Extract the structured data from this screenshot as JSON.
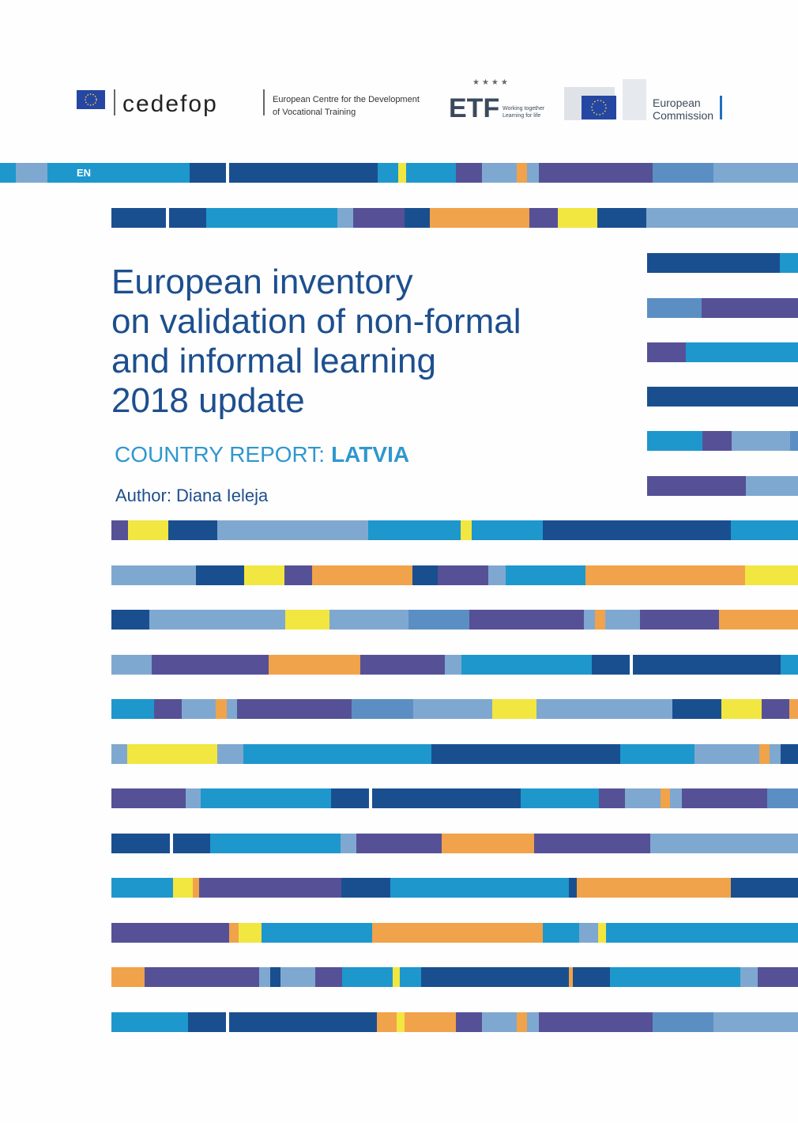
{
  "header": {
    "cedefop": "cedefop",
    "cedefop_subtitle": [
      "European Centre for the Development",
      "of Vocational Training"
    ],
    "etf": "ETF",
    "etf_tagline": [
      "Working together",
      "Learning for life"
    ],
    "commission": [
      "European",
      "Commission"
    ]
  },
  "language": "EN",
  "title": [
    "European inventory",
    "on validation of non-formal",
    "and informal learning",
    "2018 update"
  ],
  "subtitle": {
    "prefix": "COUNTRY REPORT:",
    "country": "LATVIA"
  },
  "author": "Author: Diana Ieleja"
}
